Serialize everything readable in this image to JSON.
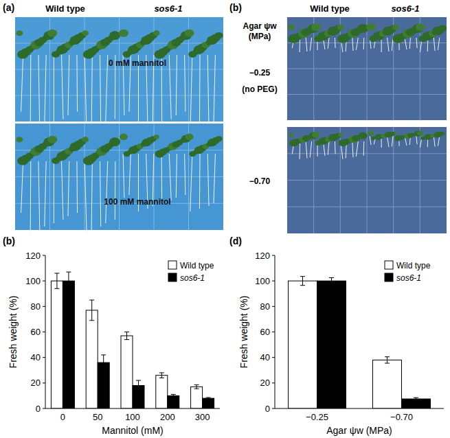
{
  "photos": [
    {
      "panel_label": "(a)",
      "column_labels": [
        "Wild type",
        "sos6-1"
      ],
      "images": [
        {
          "label": "0 mM mannitol"
        },
        {
          "label": "100 mM mannitol"
        }
      ]
    },
    {
      "panel_label": "(b)",
      "column_labels": [
        "Wild type",
        "sos6-1"
      ],
      "row_title_lines": [
        "Agar ψw",
        "(MPa)"
      ],
      "rows": [
        {
          "label": "−0.25",
          "sublabel": "(no PEG)"
        },
        {
          "label": "−0.70"
        }
      ]
    }
  ],
  "chart_data": [
    {
      "type": "bar",
      "panel_label": "(b)",
      "x_label": "Mannitol (mM)",
      "y_label": "Fresh weight (%)",
      "categories": [
        "0",
        "50",
        "100",
        "200",
        "300"
      ],
      "series": [
        {
          "name": "Wild type",
          "color": "#ffffff",
          "values": [
            100,
            77,
            57,
            26,
            17
          ],
          "errors": [
            6,
            8,
            3,
            2,
            1.5
          ]
        },
        {
          "name": "sos6-1",
          "color": "#000000",
          "values": [
            100,
            36,
            18,
            10,
            8
          ],
          "errors": [
            7,
            6,
            4,
            1,
            0.6
          ]
        }
      ],
      "ylim": [
        0,
        120
      ],
      "yticks": [
        0,
        20,
        40,
        60,
        80,
        100,
        120
      ],
      "legend": "upper right",
      "grid": false
    },
    {
      "type": "bar",
      "panel_label": "(d)",
      "x_label": "Agar ψw (MPa)",
      "y_label": "Fresh weight (%)",
      "categories": [
        "−0.25",
        "−0.70"
      ],
      "series": [
        {
          "name": "Wild type",
          "color": "#ffffff",
          "values": [
            100,
            38
          ],
          "errors": [
            3.5,
            2.5
          ]
        },
        {
          "name": "sos6-1",
          "color": "#000000",
          "values": [
            100,
            7.5
          ],
          "errors": [
            2.5,
            1
          ]
        }
      ],
      "ylim": [
        0,
        120
      ],
      "yticks": [
        0,
        20,
        40,
        60,
        80,
        100,
        120
      ],
      "legend": "upper right",
      "grid": false
    }
  ]
}
